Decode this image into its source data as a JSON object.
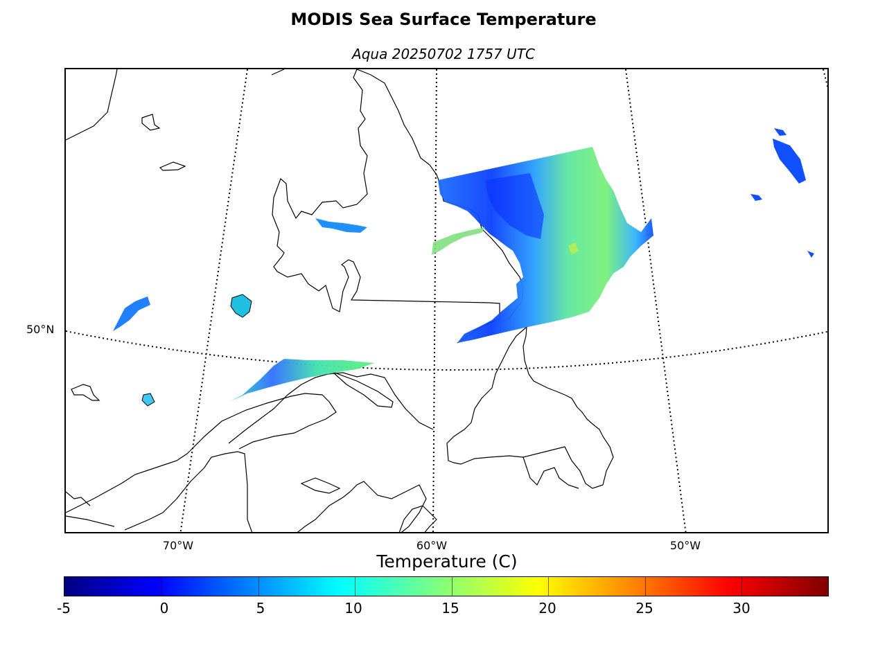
{
  "title": "MODIS Sea Surface Temperature",
  "subtitle": "Aqua 20250702 1757 UTC",
  "map": {
    "lon_labels": [
      "70°W",
      "60°W",
      "50°W"
    ],
    "lat_labels": [
      "50°N"
    ],
    "graticule": "dotted",
    "coastline_color": "#000000"
  },
  "colorbar": {
    "label": "Temperature (C)",
    "ticks": [
      "-5",
      "0",
      "5",
      "10",
      "15",
      "20",
      "25",
      "30"
    ],
    "range": [
      -5,
      34.5
    ],
    "colormap": "jet",
    "colors": [
      "#000080",
      "#0000ff",
      "#0080ff",
      "#00ffff",
      "#7fff7f",
      "#ffff00",
      "#ff8000",
      "#ff0000",
      "#800000"
    ]
  }
}
